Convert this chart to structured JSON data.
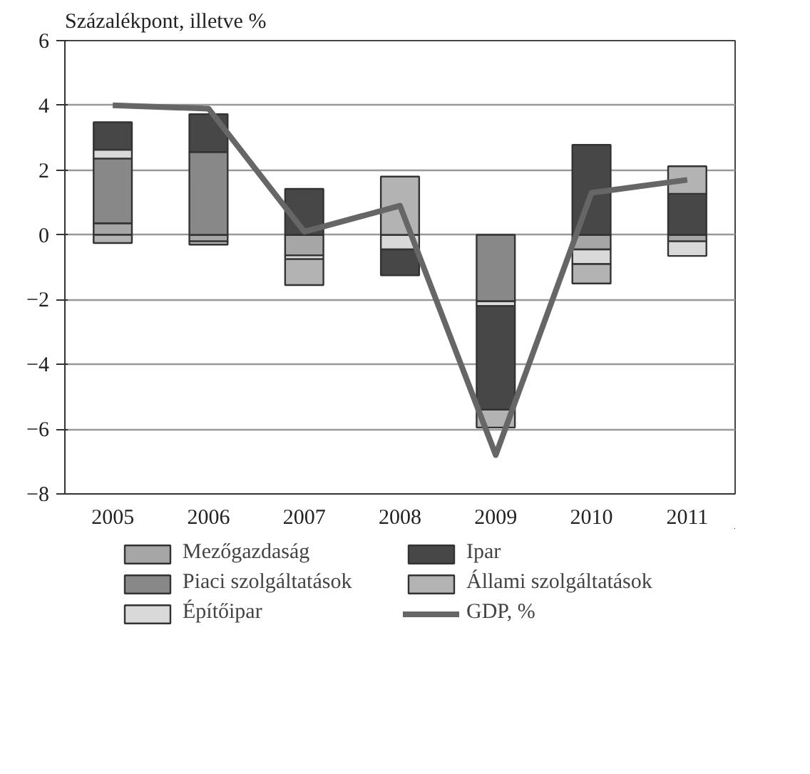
{
  "chart_data": {
    "type": "bar",
    "stacked": true,
    "ylabel": "Százalékpont, illetve %",
    "categories": [
      "2005",
      "2006",
      "2007",
      "2008",
      "2009",
      "2010",
      "2011"
    ],
    "ylim": [
      -8,
      6
    ],
    "yticks": [
      -8,
      -6,
      -4,
      -2,
      0,
      2,
      4,
      6
    ],
    "grid": "y",
    "legend": "bottom",
    "series": [
      {
        "name": "Mezőgazdaság",
        "color": "#a6a6a6",
        "values": [
          0.36,
          -0.2,
          -0.63,
          0,
          0,
          -0.45,
          -0.2
        ]
      },
      {
        "name": "Piaci szolgáltatások",
        "color": "#888888",
        "values": [
          2.0,
          2.56,
          0,
          0,
          -2.05,
          0,
          0
        ]
      },
      {
        "name": "Építőipar",
        "color": "#d9d9d9",
        "values": [
          0.27,
          0,
          -0.12,
          -0.45,
          -0.15,
          -0.45,
          -0.45
        ]
      },
      {
        "name": "Ipar",
        "color": "#474747",
        "values": [
          0.85,
          1.17,
          1.42,
          -0.8,
          -3.2,
          2.78,
          1.27
        ]
      },
      {
        "name": "Állami szolgáltatások",
        "color": "#b3b3b3",
        "values": [
          -0.25,
          -0.1,
          -0.8,
          1.8,
          -0.55,
          -0.6,
          0.85
        ]
      },
      {
        "name": "GDP, %",
        "type": "line",
        "color": "#666666",
        "values": [
          4.0,
          3.9,
          0.1,
          0.9,
          -6.8,
          1.3,
          1.7
        ]
      }
    ]
  }
}
